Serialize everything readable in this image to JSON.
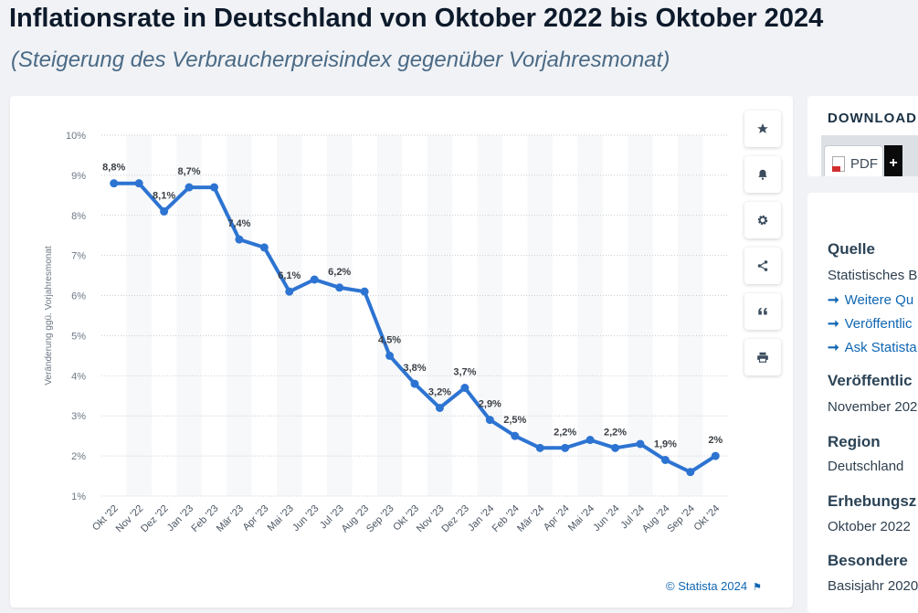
{
  "header": {
    "title": "Inflationsrate in Deutschland von Oktober 2022 bis Oktober 2024",
    "subtitle": "(Steigerung des Verbraucherpreisindex gegenüber Vorjahresmonat)"
  },
  "chart_data": {
    "type": "line",
    "ylabel": "Veränderung ggü. Vorjahresmonat",
    "xlabel": "",
    "ylim": [
      1,
      10
    ],
    "yticks": [
      "1%",
      "2%",
      "3%",
      "4%",
      "5%",
      "6%",
      "7%",
      "8%",
      "9%",
      "10%"
    ],
    "categories": [
      "Okt '22",
      "Nov '22",
      "Dez '22",
      "Jan '23",
      "Feb '23",
      "Mär '23",
      "Apr '23",
      "Mai '23",
      "Jun '23",
      "Jul '23",
      "Aug '23",
      "Sep '23",
      "Okt '23",
      "Nov '23",
      "Dez '23",
      "Jan '24",
      "Feb '24",
      "Mär '24",
      "Apr '24",
      "Mai '24",
      "Jun '24",
      "Jul '24",
      "Aug '24",
      "Sep '24",
      "Okt '24"
    ],
    "values": [
      8.8,
      8.8,
      8.1,
      8.7,
      8.7,
      7.4,
      7.2,
      6.1,
      6.4,
      6.2,
      6.1,
      4.5,
      3.8,
      3.2,
      3.7,
      2.9,
      2.5,
      2.2,
      2.2,
      2.4,
      2.2,
      2.3,
      1.9,
      1.6,
      2.0
    ],
    "data_labels": [
      "8,8%",
      "",
      "8,1%",
      "8,7%",
      "",
      "7,4%",
      "",
      "6,1%",
      "",
      "6,2%",
      "",
      "4,5%",
      "3,8%",
      "3,2%",
      "3,7%",
      "2,9%",
      "2,5%",
      "",
      "2,2%",
      "",
      "2,2%",
      "",
      "1,9%",
      "",
      "2%"
    ],
    "grid": true,
    "series_color": "#2d74d2"
  },
  "toolbar": {
    "buttons": [
      {
        "name": "favorite-button",
        "icon": "star-icon"
      },
      {
        "name": "notification-button",
        "icon": "bell-icon"
      },
      {
        "name": "settings-button",
        "icon": "gear-icon"
      },
      {
        "name": "share-button",
        "icon": "share-icon"
      },
      {
        "name": "cite-button",
        "icon": "quote-icon"
      },
      {
        "name": "print-button",
        "icon": "printer-icon"
      }
    ]
  },
  "footer": {
    "credit": "© Statista 2024"
  },
  "sidebar": {
    "download_title": "DOWNLOAD",
    "pdf_label": "PDF",
    "plus_label": "+",
    "source_heading": "Quelle",
    "source_text": "Statistisches B",
    "links": [
      "Weitere Qu",
      "Veröffentlic",
      "Ask Statista"
    ],
    "published_heading": "Veröffentlic",
    "published_text": "November 202",
    "region_heading": "Region",
    "region_text": "Deutschland",
    "survey_heading": "Erhebungsz",
    "survey_text": "Oktober 2022",
    "notes_heading": "Besondere",
    "notes_text": "Basisjahr 2020"
  }
}
